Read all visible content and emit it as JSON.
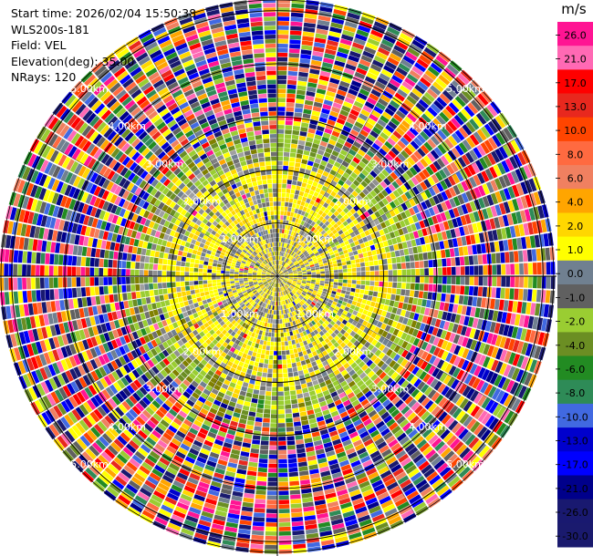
{
  "header": {
    "start_time": "Start time: 2026/02/04 15:50:38",
    "instrument": "WLS200s-181",
    "field": "Field: VEL",
    "elevation": "Elevation(deg): 35.00",
    "nrays": "NRays: 120"
  },
  "chart_data": {
    "type": "heatmap",
    "projection": "ppi-polar",
    "field": "VEL",
    "unit": "m/s",
    "n_rays": 120,
    "elevation_deg": 35.0,
    "max_range_km": 5.2,
    "range_rings_km": [
      1,
      2,
      3,
      4,
      5
    ],
    "ring_labels": [
      "1.00km",
      "2.00km",
      "3.00km",
      "4.00km",
      "5.00km"
    ],
    "pattern": {
      "inner_km": 1.0,
      "yellow_zone_km": 2.1,
      "green_zone_km": 2.55,
      "noise_start_km": 2.8
    },
    "colorbar": {
      "labels": [
        "26.0",
        "21.0",
        "17.0",
        "13.0",
        "10.0",
        "8.0",
        "6.0",
        "4.0",
        "2.0",
        "1.0",
        "0.0",
        "-1.0",
        "-2.0",
        "-4.0",
        "-6.0",
        "-8.0",
        "-10.0",
        "-13.0",
        "-17.0",
        "-21.0",
        "-26.0",
        "-30.0"
      ],
      "colors": [
        "#ff1493",
        "#ff69b4",
        "#ff0000",
        "#e8281e",
        "#ff4500",
        "#ff6a40",
        "#f08060",
        "#ffa500",
        "#ffd700",
        "#ffff00",
        "#708090",
        "#606060",
        "#9acd32",
        "#6b8e23",
        "#228b22",
        "#2e8b57",
        "#4169e1",
        "#0000cd",
        "#0000ff",
        "#00008b",
        "#191970",
        "#1a1a6e"
      ]
    }
  }
}
